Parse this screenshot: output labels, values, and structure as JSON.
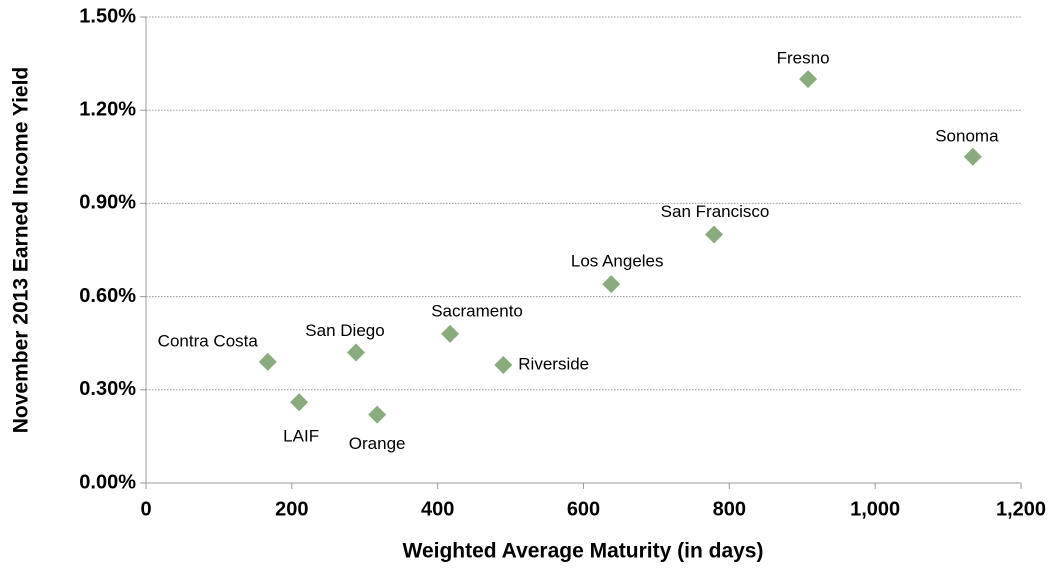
{
  "chart_data": {
    "type": "scatter",
    "xlabel": "Weighted Average Maturity (in days)",
    "ylabel": "November 2013 Earned Income Yield",
    "point_labels": [
      "Contra Costa",
      "LAIF",
      "San Diego",
      "Orange",
      "Sacramento",
      "Riverside",
      "Los Angeles",
      "San Francisco",
      "Fresno",
      "Sonoma"
    ],
    "x": [
      167,
      210,
      288,
      317,
      417,
      490,
      638,
      779,
      908,
      1134
    ],
    "values": [
      0.39,
      0.26,
      0.42,
      0.22,
      0.48,
      0.38,
      0.64,
      0.8,
      1.3,
      1.05
    ],
    "color": "#8aab7e",
    "xlim": [
      0,
      1200
    ],
    "xticks": [
      0,
      200,
      400,
      600,
      800,
      {
        "value": 1000,
        "label": "1,000"
      },
      {
        "value": 1200,
        "label": "1,200"
      }
    ],
    "ylim": [
      0,
      1.5
    ],
    "yticks": [
      {
        "value": 0,
        "label": "0.00%"
      },
      {
        "value": 0.3,
        "label": "0.30%"
      },
      {
        "value": 0.6,
        "label": "0.60%"
      },
      {
        "value": 0.9,
        "label": "0.90%"
      },
      {
        "value": 1.2,
        "label": "1.20%"
      },
      {
        "value": 1.5,
        "label": "1.50%"
      }
    ],
    "grid": true
  }
}
